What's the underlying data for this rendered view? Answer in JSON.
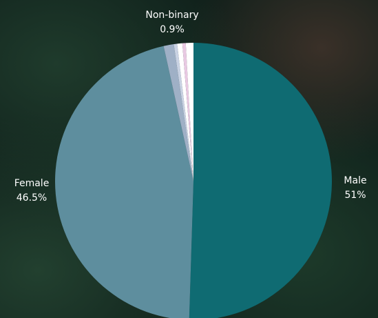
{
  "chart_data": {
    "type": "pie",
    "title": "",
    "slices": [
      {
        "label": "Male",
        "percent_label": "51%",
        "value": 51,
        "color": "#0f6b72",
        "show_label": true
      },
      {
        "label": "Female",
        "percent_label": "46.5%",
        "value": 46.5,
        "color": "#5e8e9e",
        "show_label": true
      },
      {
        "label": "",
        "percent_label": "",
        "value": 1.2,
        "color": "#9fb0c6",
        "show_label": false
      },
      {
        "label": "",
        "percent_label": "",
        "value": 0.4,
        "color": "#c9d2e3",
        "show_label": false
      },
      {
        "label": "",
        "percent_label": "",
        "value": 0.6,
        "color": "#ffffff",
        "show_label": false
      },
      {
        "label": "",
        "percent_label": "",
        "value": 0.4,
        "color": "#e8c9e2",
        "show_label": false
      },
      {
        "label": "Non-binary",
        "percent_label": "0.9%",
        "value": 0.9,
        "color": "#ffffff",
        "show_label": true
      }
    ]
  }
}
